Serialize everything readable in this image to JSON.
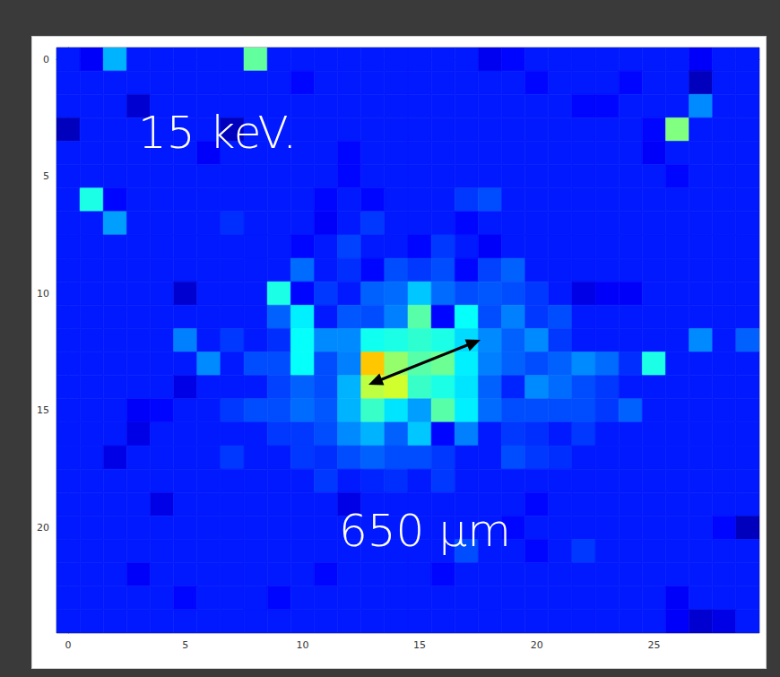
{
  "chart_data": {
    "type": "heatmap",
    "color": "jet",
    "xlim": [
      -0.5,
      29.5
    ],
    "ylim": [
      24.5,
      -0.5
    ],
    "xticks": [
      0,
      5,
      10,
      15,
      20,
      25
    ],
    "yticks": [
      0,
      5,
      10,
      15,
      20
    ],
    "color_range": [
      0,
      10
    ],
    "annotations": [
      "15 keV.",
      "650 µm"
    ],
    "cells": [
      [
        1.5,
        1.2,
        3.0,
        1.5,
        1.5,
        1.5,
        1.5,
        1.5,
        4.7,
        1.5,
        1.5,
        1.5,
        1.5,
        1.5,
        1.5,
        1.5,
        1.5,
        1.5,
        1.1,
        1.3,
        1.5,
        1.5,
        1.5,
        1.5,
        1.5,
        1.5,
        1.5,
        1.2,
        1.5,
        1.5
      ],
      [
        1.5,
        1.5,
        1.5,
        1.5,
        1.5,
        1.5,
        1.5,
        1.5,
        1.5,
        1.5,
        1.3,
        1.5,
        1.5,
        1.5,
        1.5,
        1.5,
        1.5,
        1.5,
        1.5,
        1.5,
        1.3,
        1.5,
        1.5,
        1.5,
        1.3,
        1.5,
        1.5,
        0.6,
        1.5,
        1.5
      ],
      [
        1.5,
        1.5,
        1.5,
        0.8,
        1.5,
        1.5,
        1.5,
        1.5,
        1.5,
        1.5,
        1.5,
        1.5,
        1.5,
        1.5,
        1.5,
        1.5,
        1.5,
        1.5,
        1.5,
        1.5,
        1.5,
        1.5,
        1.3,
        1.3,
        1.5,
        1.5,
        1.5,
        2.6,
        1.5,
        1.5
      ],
      [
        0.6,
        1.5,
        1.5,
        1.5,
        1.5,
        1.5,
        1.5,
        0.6,
        1.5,
        1.5,
        1.5,
        1.5,
        1.5,
        1.5,
        1.5,
        1.5,
        1.5,
        1.5,
        1.5,
        1.5,
        1.5,
        1.5,
        1.5,
        1.5,
        1.5,
        1.3,
        5.0,
        1.5,
        1.5,
        1.5
      ],
      [
        1.5,
        1.5,
        1.5,
        1.5,
        1.5,
        1.5,
        1.2,
        1.5,
        1.5,
        1.5,
        1.5,
        1.5,
        1.3,
        1.5,
        1.5,
        1.5,
        1.5,
        1.5,
        1.5,
        1.5,
        1.5,
        1.5,
        1.5,
        1.5,
        1.5,
        1.2,
        1.5,
        1.5,
        1.5,
        1.5
      ],
      [
        1.5,
        1.5,
        1.5,
        1.5,
        1.5,
        1.5,
        1.5,
        1.5,
        1.5,
        1.5,
        1.5,
        1.5,
        1.3,
        1.5,
        1.5,
        1.5,
        1.5,
        1.5,
        1.5,
        1.5,
        1.5,
        1.5,
        1.5,
        1.5,
        1.5,
        1.5,
        1.3,
        1.5,
        1.5,
        1.5
      ],
      [
        1.5,
        4.0,
        1.3,
        1.5,
        1.5,
        1.5,
        1.5,
        1.5,
        1.5,
        1.5,
        1.5,
        1.3,
        1.5,
        1.3,
        1.5,
        1.5,
        1.5,
        1.8,
        2.0,
        1.5,
        1.5,
        1.5,
        1.5,
        1.5,
        1.5,
        1.5,
        1.5,
        1.5,
        1.5,
        1.5
      ],
      [
        1.5,
        1.5,
        2.8,
        1.5,
        1.5,
        1.5,
        1.5,
        1.7,
        1.5,
        1.5,
        1.5,
        1.2,
        1.5,
        1.8,
        1.5,
        1.5,
        1.5,
        1.3,
        1.5,
        1.5,
        1.5,
        1.5,
        1.5,
        1.5,
        1.5,
        1.5,
        1.5,
        1.5,
        1.5,
        1.5
      ],
      [
        1.5,
        1.5,
        1.5,
        1.5,
        1.5,
        1.5,
        1.5,
        1.5,
        1.5,
        1.5,
        1.3,
        1.5,
        1.9,
        1.5,
        1.5,
        1.3,
        1.8,
        1.5,
        1.2,
        1.5,
        1.5,
        1.5,
        1.5,
        1.5,
        1.5,
        1.5,
        1.5,
        1.5,
        1.5,
        1.5
      ],
      [
        1.5,
        1.5,
        1.5,
        1.5,
        1.5,
        1.5,
        1.5,
        1.5,
        1.5,
        1.5,
        2.3,
        1.5,
        1.7,
        1.3,
        2.0,
        1.8,
        2.0,
        1.3,
        1.9,
        2.2,
        1.5,
        1.5,
        1.5,
        1.5,
        1.5,
        1.5,
        1.5,
        1.5,
        1.5,
        1.5
      ],
      [
        1.5,
        1.5,
        1.5,
        1.5,
        1.5,
        0.8,
        1.5,
        1.5,
        1.5,
        4.0,
        1.3,
        1.8,
        1.5,
        2.2,
        2.3,
        3.2,
        2.3,
        2.0,
        2.1,
        2.0,
        1.8,
        1.5,
        1.0,
        1.2,
        1.2,
        1.5,
        1.5,
        1.5,
        1.5,
        1.5
      ],
      [
        1.5,
        1.5,
        1.5,
        1.5,
        1.5,
        1.5,
        1.5,
        1.5,
        1.5,
        2.2,
        3.6,
        1.5,
        2.1,
        2.0,
        2.5,
        4.6,
        1.3,
        3.8,
        2.0,
        2.5,
        1.8,
        2.0,
        1.5,
        1.5,
        1.5,
        1.5,
        1.5,
        1.5,
        1.5,
        1.5
      ],
      [
        1.5,
        1.5,
        1.5,
        1.5,
        1.5,
        2.5,
        1.5,
        1.8,
        1.5,
        1.7,
        3.8,
        2.6,
        2.6,
        3.9,
        4.0,
        4.2,
        4.0,
        3.4,
        2.6,
        2.2,
        2.6,
        1.8,
        1.5,
        1.5,
        1.5,
        1.5,
        1.5,
        2.6,
        1.5,
        2.2
      ],
      [
        1.5,
        1.5,
        1.5,
        1.5,
        1.5,
        1.5,
        2.6,
        1.5,
        2.0,
        2.0,
        3.8,
        2.0,
        2.5,
        6.8,
        5.2,
        4.6,
        4.8,
        3.6,
        2.5,
        2.2,
        2.0,
        2.2,
        2.6,
        2.3,
        1.7,
        4.0,
        1.5,
        1.5,
        1.5,
        1.5
      ],
      [
        1.5,
        1.5,
        1.5,
        1.5,
        1.5,
        1.0,
        1.5,
        1.5,
        1.5,
        1.9,
        2.2,
        2.0,
        3.0,
        5.6,
        5.8,
        4.3,
        4.0,
        3.5,
        2.2,
        1.6,
        2.6,
        2.3,
        2.0,
        1.8,
        1.5,
        1.5,
        1.5,
        1.5,
        1.5,
        1.5
      ],
      [
        1.5,
        1.5,
        1.5,
        1.2,
        1.3,
        1.5,
        1.5,
        1.8,
        2.0,
        2.0,
        2.3,
        2.1,
        3.0,
        4.3,
        3.5,
        2.8,
        4.6,
        3.6,
        2.3,
        2.0,
        2.0,
        2.0,
        2.0,
        1.8,
        2.2,
        1.5,
        1.5,
        1.5,
        1.5,
        1.5
      ],
      [
        1.5,
        1.5,
        1.5,
        1.0,
        1.5,
        1.5,
        1.5,
        1.5,
        1.5,
        1.8,
        1.8,
        2.0,
        2.6,
        3.0,
        2.2,
        3.2,
        1.3,
        2.5,
        1.5,
        1.8,
        1.7,
        1.5,
        1.8,
        1.5,
        1.5,
        1.5,
        1.5,
        1.5,
        1.5,
        1.5
      ],
      [
        1.5,
        1.5,
        1.0,
        1.5,
        1.5,
        1.5,
        1.5,
        1.8,
        1.5,
        1.5,
        1.8,
        1.7,
        2.0,
        2.2,
        2.0,
        2.0,
        1.8,
        1.5,
        1.5,
        2.0,
        1.8,
        1.7,
        1.5,
        1.5,
        1.5,
        1.5,
        1.5,
        1.5,
        1.5,
        1.5
      ],
      [
        1.5,
        1.5,
        1.5,
        1.5,
        1.5,
        1.5,
        1.5,
        1.5,
        1.5,
        1.5,
        1.5,
        1.8,
        1.5,
        1.6,
        1.7,
        1.5,
        1.8,
        1.5,
        1.5,
        1.5,
        1.5,
        1.5,
        1.5,
        1.5,
        1.5,
        1.5,
        1.5,
        1.5,
        1.5,
        1.5
      ],
      [
        1.5,
        1.5,
        1.5,
        1.5,
        1.0,
        1.5,
        1.5,
        1.5,
        1.5,
        1.5,
        1.5,
        1.5,
        1.0,
        1.5,
        1.5,
        1.5,
        1.5,
        1.5,
        1.5,
        1.5,
        1.3,
        1.5,
        1.5,
        1.5,
        1.5,
        1.5,
        1.5,
        1.5,
        1.5,
        1.5
      ],
      [
        1.5,
        1.5,
        1.5,
        1.5,
        1.5,
        1.5,
        1.5,
        1.5,
        1.5,
        1.5,
        1.5,
        1.5,
        1.5,
        1.5,
        1.5,
        1.5,
        1.5,
        1.5,
        1.5,
        1.3,
        1.5,
        1.5,
        1.5,
        1.5,
        1.5,
        1.5,
        1.5,
        1.5,
        1.3,
        0.6
      ],
      [
        1.5,
        1.5,
        1.5,
        1.5,
        1.5,
        1.5,
        1.5,
        1.5,
        1.5,
        1.5,
        1.5,
        1.5,
        1.5,
        1.5,
        1.5,
        1.5,
        1.5,
        2.0,
        1.5,
        1.5,
        1.3,
        1.5,
        1.8,
        1.5,
        1.5,
        1.5,
        1.5,
        1.5,
        1.5,
        1.5
      ],
      [
        1.5,
        1.5,
        1.5,
        1.2,
        1.5,
        1.5,
        1.5,
        1.5,
        1.5,
        1.5,
        1.5,
        1.3,
        1.5,
        1.5,
        1.5,
        1.5,
        1.3,
        1.5,
        1.5,
        1.5,
        1.5,
        1.5,
        1.5,
        1.5,
        1.5,
        1.5,
        1.5,
        1.5,
        1.5,
        1.5
      ],
      [
        1.5,
        1.5,
        1.5,
        1.5,
        1.5,
        1.3,
        1.5,
        1.5,
        1.5,
        1.3,
        1.5,
        1.5,
        1.5,
        1.5,
        1.5,
        1.5,
        1.5,
        1.5,
        1.5,
        1.5,
        1.5,
        1.5,
        1.5,
        1.5,
        1.5,
        1.5,
        1.2,
        1.5,
        1.5,
        1.5
      ],
      [
        1.5,
        1.5,
        1.5,
        1.5,
        1.5,
        1.5,
        1.5,
        1.5,
        1.5,
        1.5,
        1.5,
        1.5,
        1.5,
        1.5,
        1.5,
        1.5,
        1.5,
        1.5,
        1.5,
        1.5,
        1.5,
        1.5,
        1.5,
        1.5,
        1.5,
        1.5,
        1.2,
        0.8,
        1.0,
        1.5
      ]
    ]
  }
}
